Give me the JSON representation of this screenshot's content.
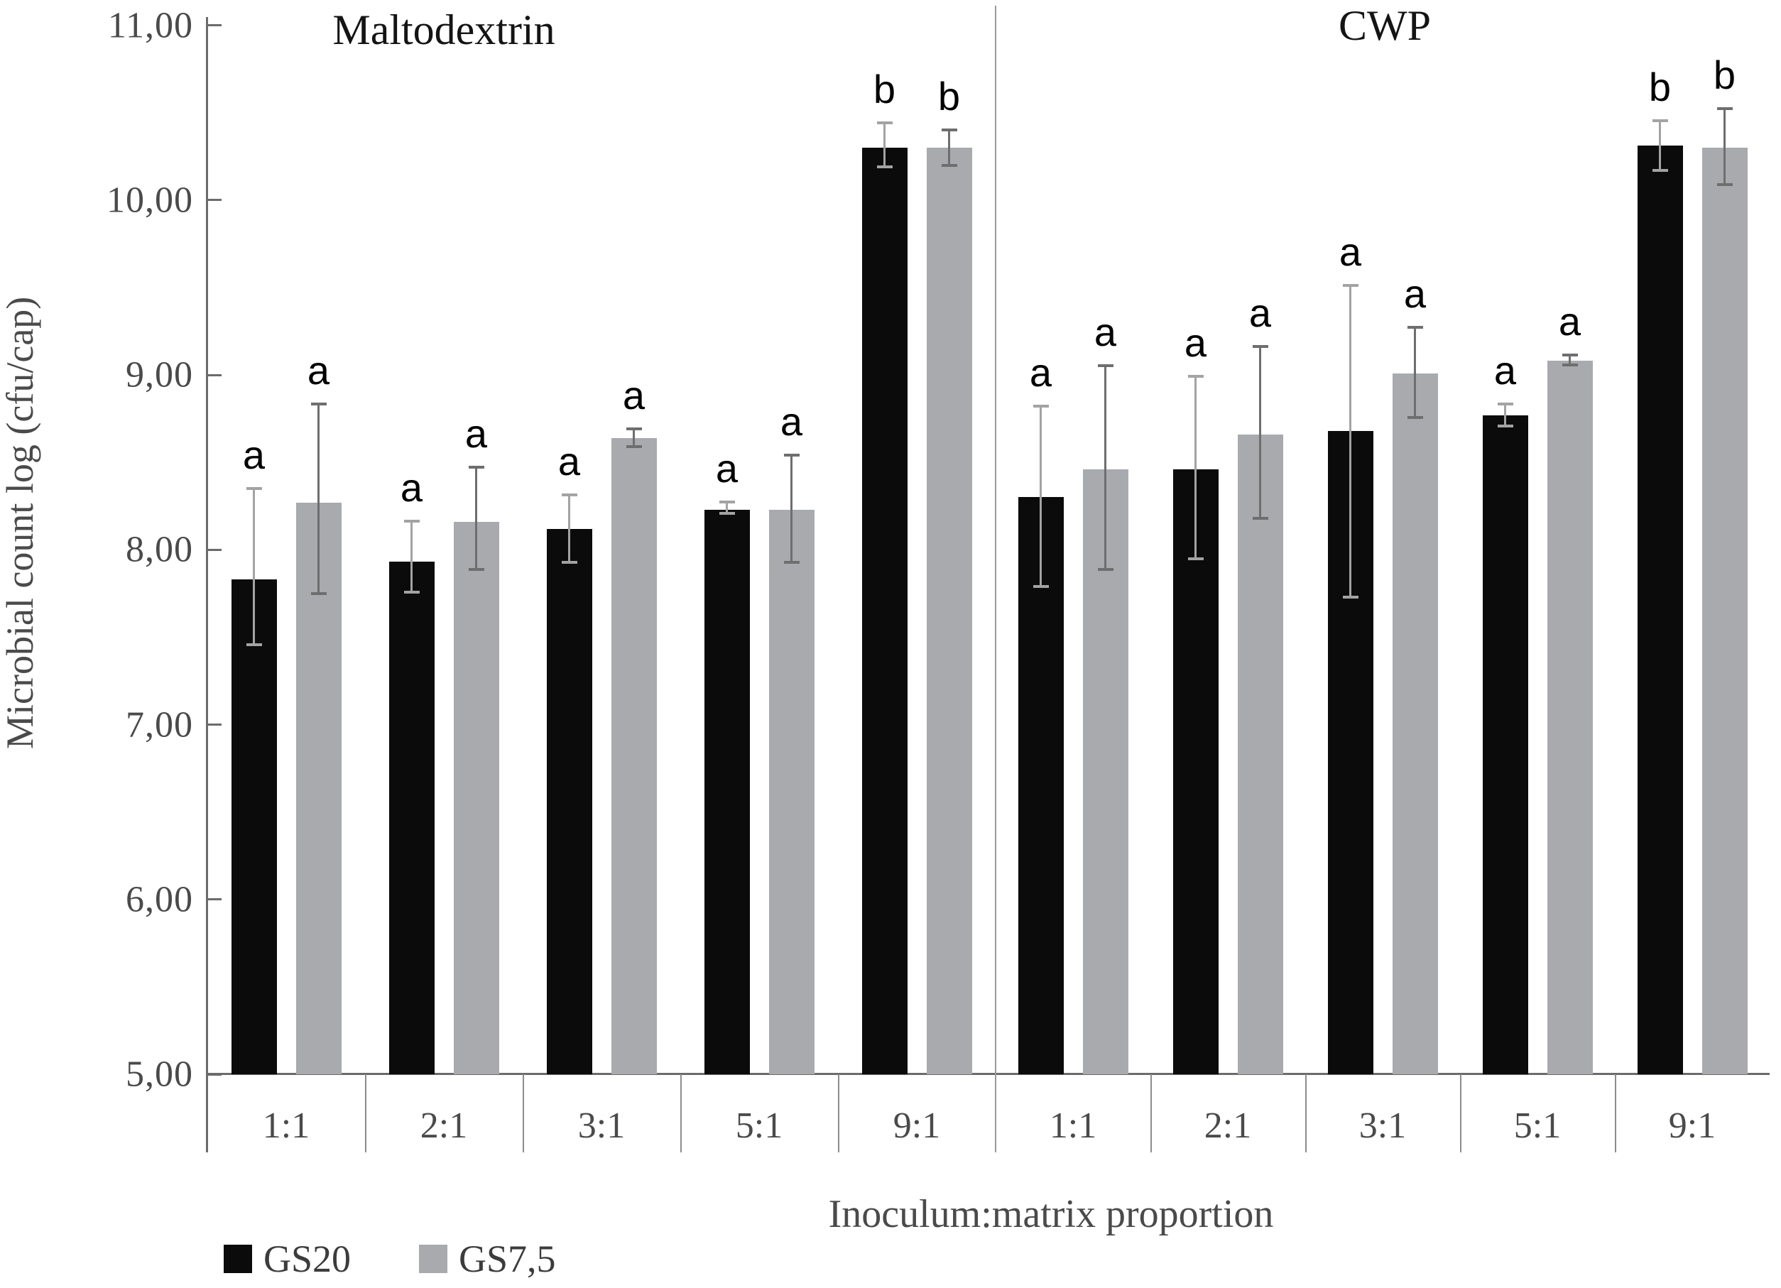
{
  "chart_data": {
    "type": "bar",
    "title": "",
    "ylabel": "Microbial count log (cfu/cap)",
    "xlabel": "Inoculum:matrix proportion",
    "ylim": [
      5,
      11
    ],
    "grid": false,
    "legend_position": "bottom-left",
    "yticks": [
      {
        "value": 11,
        "label": "11,00"
      },
      {
        "value": 10,
        "label": "10,00"
      },
      {
        "value": 9,
        "label": "9,00"
      },
      {
        "value": 8,
        "label": "8,00"
      },
      {
        "value": 7,
        "label": "7,00"
      },
      {
        "value": 6,
        "label": "6,00"
      },
      {
        "value": 5,
        "label": "5,00"
      }
    ],
    "categories": [
      "1:1",
      "2:1",
      "3:1",
      "5:1",
      "9:1"
    ],
    "panels": [
      {
        "title": "Maltodextrin",
        "title_x": 625,
        "series": [
          {
            "name": "GS20",
            "color": "#0b0b0b",
            "err_color": "#a3a3a3",
            "values": [
              7.83,
              7.93,
              8.12,
              8.23,
              10.3
            ],
            "err_low": [
              7.45,
              7.75,
              7.92,
              8.2,
              10.18
            ],
            "err_high": [
              8.36,
              8.17,
              8.32,
              8.28,
              10.45
            ],
            "letters": [
              "a",
              "a",
              "a",
              "a",
              "b"
            ]
          },
          {
            "name": "GS7,5",
            "color": "#a8aaae",
            "err_color": "#6e6e6e",
            "values": [
              8.27,
              8.16,
              8.64,
              8.23,
              10.3
            ],
            "err_low": [
              7.74,
              7.88,
              8.58,
              7.92,
              10.19
            ],
            "err_high": [
              8.84,
              8.48,
              8.7,
              8.55,
              10.41
            ],
            "letters": [
              "a",
              "a",
              "a",
              "a",
              "b"
            ]
          }
        ]
      },
      {
        "title": "CWP",
        "title_x": 1950,
        "series": [
          {
            "name": "GS20",
            "color": "#0b0b0b",
            "err_color": "#a3a3a3",
            "values": [
              8.3,
              8.46,
              8.68,
              8.77,
              10.31
            ],
            "err_low": [
              7.78,
              7.94,
              7.72,
              8.7,
              10.16
            ],
            "err_high": [
              8.83,
              9.0,
              9.52,
              8.84,
              10.46
            ],
            "letters": [
              "a",
              "a",
              "a",
              "a",
              "b"
            ]
          },
          {
            "name": "GS7,5",
            "color": "#a8aaae",
            "err_color": "#6e6e6e",
            "values": [
              8.46,
              8.66,
              9.01,
              9.08,
              10.3
            ],
            "err_low": [
              7.88,
              8.17,
              8.75,
              9.05,
              10.08
            ],
            "err_high": [
              9.06,
              9.17,
              9.28,
              9.12,
              10.53
            ],
            "letters": [
              "a",
              "a",
              "a",
              "a",
              "b"
            ]
          }
        ]
      }
    ],
    "legend": [
      {
        "label": "GS20",
        "color": "#0b0b0b"
      },
      {
        "label": "GS7,5",
        "color": "#a8aaae"
      }
    ]
  }
}
